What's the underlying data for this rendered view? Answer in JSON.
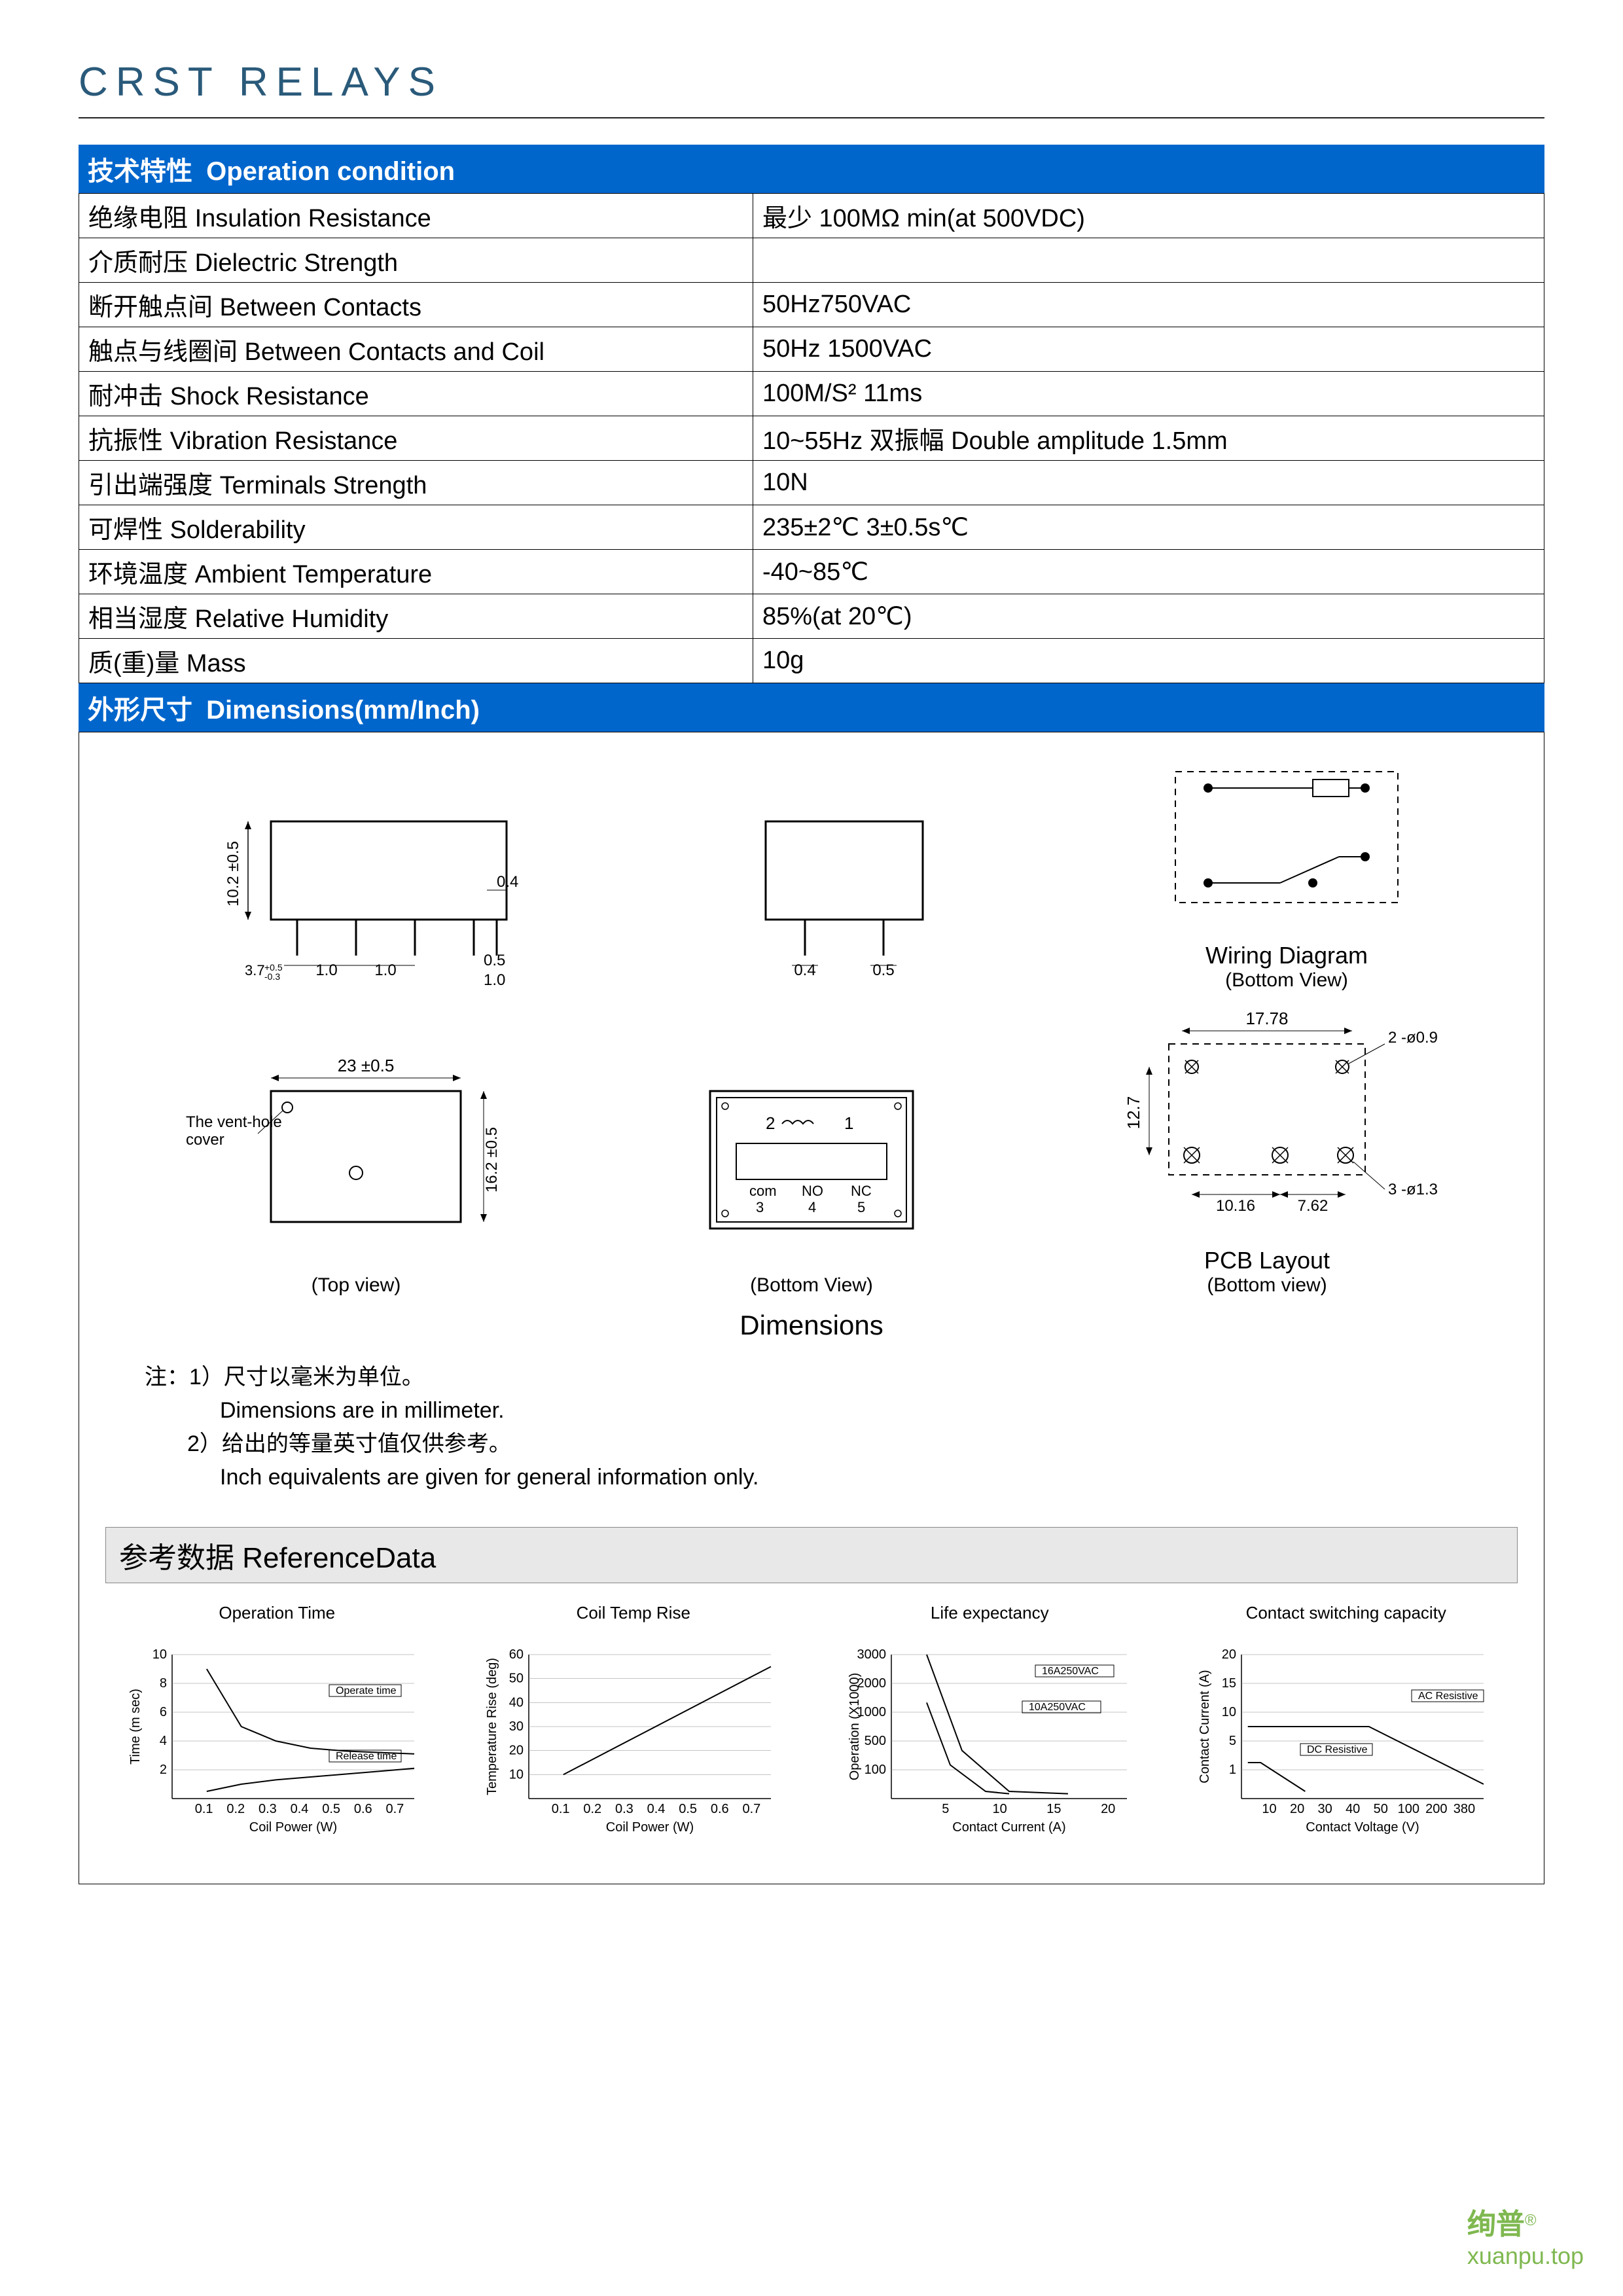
{
  "title": "CRST RELAYS",
  "section1": {
    "cn": "技术特性",
    "en": "Operation condition"
  },
  "rows": [
    {
      "label_cn": "绝缘电阻",
      "label_en": "Insulation Resistance",
      "value": "最少  100MΩ  min(at 500VDC)"
    },
    {
      "label_cn": "介质耐压",
      "label_en": "Dielectric Strength",
      "value": ""
    },
    {
      "label_cn": "断开触点间",
      "label_en": "Between Contacts",
      "value": "50Hz750VAC"
    },
    {
      "label_cn": "触点与线圈间",
      "label_en": "Between Contacts and Coil",
      "value": "50Hz 1500VAC"
    },
    {
      "label_cn": "耐冲击",
      "label_en": "Shock Resistance",
      "value": "100M/S²     11ms"
    },
    {
      "label_cn": "抗振性",
      "label_en": "Vibration Resistance",
      "value": "10~55Hz  双振幅  Double amplitude 1.5mm"
    },
    {
      "label_cn": "引出端强度",
      "label_en": "Terminals Strength",
      "value": "10N"
    },
    {
      "label_cn": "可焊性",
      "label_en": "Solderability",
      "value": "235±2℃       3±0.5s℃"
    },
    {
      "label_cn": "环境温度",
      "label_en": "Ambient Temperature",
      "value": "-40~85℃"
    },
    {
      "label_cn": "相当湿度",
      "label_en": "Relative Humidity",
      "value": "85%(at 20℃)"
    },
    {
      "label_cn": "质(重)量",
      "label_en": "Mass",
      "value": "10g"
    }
  ],
  "section2": {
    "cn": "外形尺寸",
    "en": "Dimensions(mm/Inch)"
  },
  "diagrams": {
    "side": {
      "h": "10.2 ±0.5",
      "pin_w": "0.4",
      "base_tol": "3.7 +0.5 -0.3",
      "spacing1": "1.0",
      "spacing2": "1.0",
      "pin_tip": "0.5",
      "pin_base": "1.0"
    },
    "side2": {
      "pin_w1": "0.4",
      "pin_w2": "0.5"
    },
    "top": {
      "width": "23 ±0.5",
      "height": "16.2 ±0.5",
      "vent_label": "The vent-hole cover",
      "caption": "(Top view)"
    },
    "bottom": {
      "labels": [
        "2",
        "1",
        "com",
        "NO",
        "NC",
        "3",
        "4",
        "5"
      ],
      "caption": "(Bottom View)"
    },
    "wiring": {
      "title": "Wiring Diagram",
      "sub": "(Bottom View)"
    },
    "pcb": {
      "w": "17.78",
      "h": "12.7",
      "s1": "10.16",
      "s2": "7.62",
      "hole_top": "2 -ø0.9",
      "hole_bot": "3 -ø1.3",
      "title": "PCB Layout",
      "sub": "(Bottom view)"
    },
    "dim_title": "Dimensions"
  },
  "notes": {
    "n1_cn": "注：1）尺寸以毫米为单位。",
    "n1_en": "Dimensions are in millimeter.",
    "n2_cn": "2）给出的等量英寸值仅供参考。",
    "n2_en": "Inch equivalents are given for general information only."
  },
  "ref_header": {
    "cn": "参考数据",
    "en": "ReferenceData"
  },
  "charts": {
    "c1": {
      "title": "Operation Time",
      "ylabel": "Time (m sec)",
      "xlabel": "Coil Power (W)",
      "yticks": [
        "10",
        "8",
        "6",
        "4",
        "2"
      ],
      "xticks": [
        "0.1",
        "0.2",
        "0.3",
        "0.4",
        "0.5",
        "0.6",
        "0.7"
      ],
      "series": [
        "Operate time",
        "Release time"
      ],
      "op_curve": [
        [
          0.1,
          9
        ],
        [
          0.2,
          5
        ],
        [
          0.3,
          4
        ],
        [
          0.4,
          3.5
        ],
        [
          0.5,
          3.3
        ],
        [
          0.6,
          3.2
        ],
        [
          0.7,
          3.1
        ]
      ],
      "rel_curve": [
        [
          0.1,
          0.5
        ],
        [
          0.2,
          1
        ],
        [
          0.3,
          1.3
        ],
        [
          0.4,
          1.5
        ],
        [
          0.5,
          1.7
        ],
        [
          0.6,
          1.9
        ],
        [
          0.7,
          2.1
        ]
      ],
      "ylim": [
        0,
        10
      ]
    },
    "c2": {
      "title": "Coil Temp Rise",
      "ylabel": "Temperature Rise (deg)",
      "xlabel": "Coil Power (W)",
      "yticks": [
        "60",
        "50",
        "40",
        "30",
        "20",
        "10"
      ],
      "xticks": [
        "0.1",
        "0.2",
        "0.3",
        "0.4",
        "0.5",
        "0.6",
        "0.7"
      ],
      "curve": [
        [
          0.1,
          10
        ],
        [
          0.7,
          55
        ]
      ],
      "ylim": [
        0,
        60
      ]
    },
    "c3": {
      "title": "Life expectancy",
      "ylabel": "Operation (X1000)",
      "xlabel": "Contact Current (A)",
      "yticks": [
        "3000",
        "2000",
        "1000",
        "500",
        "100"
      ],
      "xticks": [
        "5",
        "10",
        "15",
        "20"
      ],
      "series": [
        "16A250VAC",
        "10A250VAC"
      ],
      "a_curve": [
        [
          3,
          3000
        ],
        [
          6,
          1000
        ],
        [
          10,
          150
        ],
        [
          15,
          100
        ]
      ],
      "b_curve": [
        [
          3,
          2000
        ],
        [
          5,
          700
        ],
        [
          8,
          150
        ],
        [
          10,
          100
        ]
      ]
    },
    "c4": {
      "title": "Contact switching capacity",
      "ylabel": "Contact Current (A)",
      "xlabel": "Contact Voltage (V)",
      "yticks": [
        "20",
        "15",
        "10",
        "5",
        "1"
      ],
      "xticks": [
        "10",
        "20",
        "30",
        "40",
        "50",
        "100",
        "200",
        "380"
      ],
      "series": [
        "AC Resistive",
        "DC Resistive"
      ]
    },
    "chart_style": {
      "stroke": "#000000",
      "grid": "#000000",
      "bg": "#ffffff",
      "line_width": 2,
      "font_size": 22
    }
  },
  "watermark": {
    "brand": "绚普",
    "url": "xuanpu.top"
  }
}
